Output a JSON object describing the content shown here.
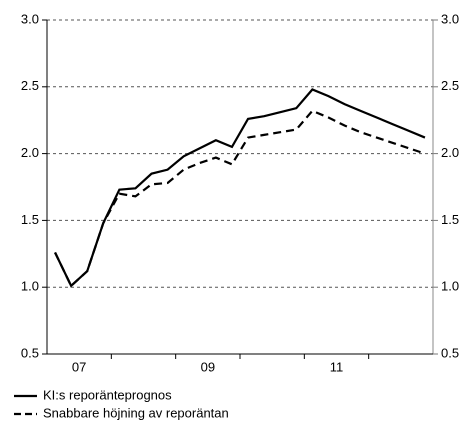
{
  "chart_data": {
    "type": "line",
    "x": [
      2007.125,
      2007.375,
      2007.625,
      2007.875,
      2008.125,
      2008.375,
      2008.625,
      2008.875,
      2009.125,
      2009.375,
      2009.625,
      2009.875,
      2010.125,
      2010.375,
      2010.625,
      2010.875,
      2011.125,
      2011.375,
      2011.625,
      2011.875,
      2012.125,
      2012.375,
      2012.625,
      2012.875
    ],
    "series": [
      {
        "name": "KI:s reporänteprognos",
        "color": "#000000",
        "dash": "solid",
        "values": [
          1.26,
          1.01,
          1.12,
          1.48,
          1.73,
          1.74,
          1.85,
          1.88,
          1.98,
          2.04,
          2.1,
          2.05,
          2.26,
          2.28,
          2.31,
          2.34,
          2.48,
          2.43,
          2.37,
          2.32,
          2.27,
          2.22,
          2.17,
          2.12
        ]
      },
      {
        "name": "Snabbare höjning av reporäntan",
        "color": "#000000",
        "dash": "dashed",
        "values": [
          1.26,
          1.01,
          1.12,
          1.48,
          1.7,
          1.68,
          1.77,
          1.78,
          1.88,
          1.93,
          1.97,
          1.92,
          2.12,
          2.14,
          2.16,
          2.18,
          2.32,
          2.27,
          2.21,
          2.16,
          2.12,
          2.08,
          2.04,
          2.0
        ]
      }
    ],
    "xlim": [
      2007,
      2013
    ],
    "xticks": [
      {
        "value": 2007.5,
        "label": "07"
      },
      {
        "value": 2009.5,
        "label": "09"
      },
      {
        "value": 2011.5,
        "label": "11"
      }
    ],
    "xminorticks": [
      2008,
      2009,
      2010,
      2011,
      2012
    ],
    "ylim": [
      0.5,
      3.0
    ],
    "yticks": [
      {
        "value": 0.5,
        "label": "0.5"
      },
      {
        "value": 1.0,
        "label": "1.0"
      },
      {
        "value": 1.5,
        "label": "1.5"
      },
      {
        "value": 2.0,
        "label": "2.0"
      },
      {
        "value": 2.5,
        "label": "2.5"
      },
      {
        "value": 3.0,
        "label": "3.0"
      }
    ],
    "y2lim": [
      0.5,
      3.0
    ],
    "y2ticks": [
      {
        "value": 0.5,
        "label": "0.5"
      },
      {
        "value": 1.0,
        "label": "1.0"
      },
      {
        "value": 1.5,
        "label": "1.5"
      },
      {
        "value": 2.0,
        "label": "2.0"
      },
      {
        "value": 2.5,
        "label": "2.5"
      },
      {
        "value": 3.0,
        "label": "3.0"
      }
    ],
    "grid": true,
    "legend": "bottom"
  }
}
